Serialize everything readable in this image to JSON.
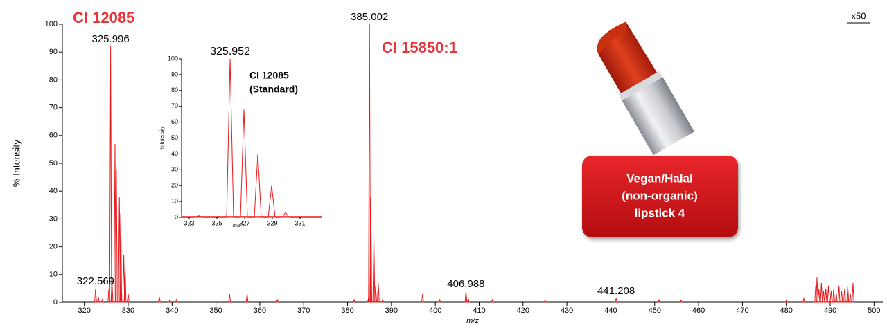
{
  "chart_data": [
    {
      "type": "stem",
      "xlabel": "m/z",
      "ylabel": "% Intensity",
      "color": "#e8191b",
      "x": [
        322.569,
        323.2,
        324.1,
        325.6,
        325.996,
        326.3,
        326.996,
        327.3,
        327.99,
        328.3,
        328.99,
        329.3,
        330,
        337.1,
        339.5,
        341,
        353.1,
        357.1,
        364,
        381.5,
        384.8,
        385.002,
        385.3,
        386.0,
        386.4,
        387.0,
        388,
        397.1,
        401,
        406.988,
        407.5,
        413,
        425,
        441.208,
        451,
        456,
        480,
        484,
        486.7,
        487.0,
        487.4,
        488,
        488.5,
        489,
        489.6,
        490.2,
        490.8,
        491.4,
        492,
        492.6,
        493.3,
        494,
        494.6,
        495.2
      ],
      "values": [
        5,
        2,
        1,
        5,
        92,
        8,
        57,
        48,
        38,
        32,
        17,
        12,
        3,
        2,
        1,
        1,
        3,
        3,
        1,
        1,
        2,
        100,
        38,
        23,
        6,
        7,
        1,
        3,
        1,
        4,
        1.5,
        1,
        0.8,
        1.5,
        1,
        0.8,
        0.8,
        1.5,
        6,
        9,
        5,
        7,
        4,
        5,
        6,
        4,
        5,
        3,
        6,
        4,
        5,
        6,
        3,
        7
      ],
      "peak_labels": [
        322.569,
        325.996,
        385.002,
        406.988,
        441.208
      ],
      "compound_labels": [
        "CI 12085",
        "CI 15850:1"
      ],
      "scale_note": "x50",
      "xlim": [
        315,
        502
      ],
      "xticks": [
        320,
        330,
        340,
        350,
        360,
        370,
        380,
        390,
        400,
        410,
        420,
        430,
        440,
        450,
        460,
        470,
        480,
        490,
        500
      ],
      "ylim": [
        0,
        100
      ],
      "yticks": [
        0,
        10,
        20,
        30,
        40,
        50,
        60,
        70,
        80,
        90,
        100
      ]
    },
    {
      "type": "stem",
      "title_lines": [
        "CI 12085",
        "(Standard)"
      ],
      "xlabel": "m/z",
      "ylabel": "% Intensity",
      "color": "#e8191b",
      "x": [
        323.7,
        325.952,
        326.95,
        327.95,
        328.95,
        329.95
      ],
      "values": [
        1,
        100,
        68,
        40,
        20,
        3
      ],
      "peak_labels": [
        325.952
      ],
      "xlim": [
        322.45,
        332.6
      ],
      "xticks": [
        323,
        325,
        327,
        329,
        331
      ],
      "ylim": [
        0,
        100
      ],
      "yticks": [
        0,
        10,
        20,
        30,
        40,
        50,
        60,
        70,
        80,
        90,
        100
      ]
    }
  ],
  "product_box": {
    "lines": [
      "Vegan/Halal",
      "(non-organic)",
      "lipstick 4"
    ]
  }
}
